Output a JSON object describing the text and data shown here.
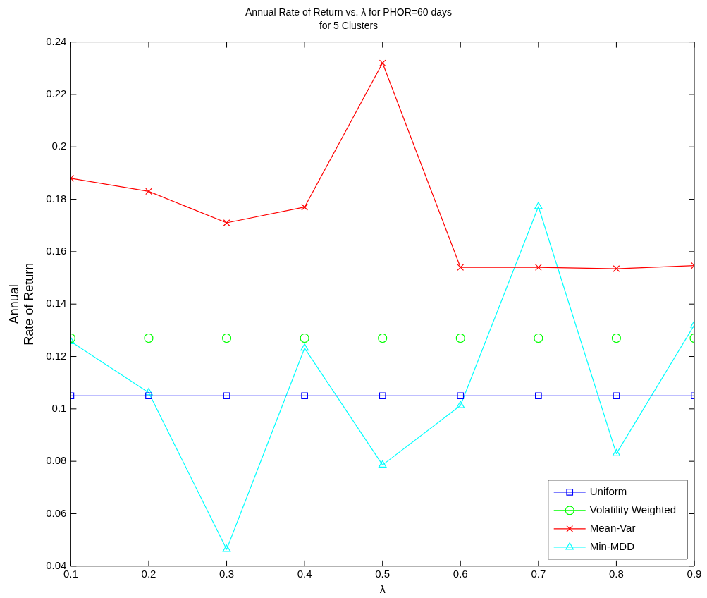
{
  "chart_data": {
    "type": "line",
    "title": "Annual Rate of Return vs. λ for PHOR=60 days",
    "subtitle": "for 5 Clusters",
    "xlabel": "λ",
    "ylabel": "Annual\nRate of Return",
    "x": [
      0.1,
      0.2,
      0.3,
      0.4,
      0.5,
      0.6,
      0.7,
      0.8,
      0.9
    ],
    "xlim": [
      0.1,
      0.9
    ],
    "xticks": [
      0.1,
      0.2,
      0.3,
      0.4,
      0.5,
      0.6,
      0.7,
      0.8,
      0.9
    ],
    "ylim": [
      0.04,
      0.24
    ],
    "yticks": [
      0.04,
      0.06,
      0.08,
      0.1,
      0.12,
      0.14,
      0.16,
      0.18,
      0.2,
      0.22,
      0.24
    ],
    "legend": "bottom right",
    "series": [
      {
        "name": "Uniform",
        "color": "#0000ff",
        "marker": "square",
        "values": [
          0.105,
          0.105,
          0.105,
          0.105,
          0.105,
          0.105,
          0.105,
          0.105,
          0.105
        ]
      },
      {
        "name": "Volatility Weighted",
        "color": "#00ff00",
        "marker": "circle",
        "values": [
          0.127,
          0.127,
          0.127,
          0.127,
          0.127,
          0.127,
          0.127,
          0.127,
          0.127
        ]
      },
      {
        "name": "Mean-Var",
        "color": "#ff0000",
        "marker": "cross",
        "values": [
          0.188,
          0.183,
          0.171,
          0.177,
          0.232,
          0.154,
          0.154,
          0.1535,
          0.1547
        ]
      },
      {
        "name": "Min-MDD",
        "color": "#00ffff",
        "marker": "triangle",
        "values": [
          0.1257,
          0.1062,
          0.0464,
          0.1232,
          0.0786,
          0.1013,
          0.1772,
          0.0829,
          0.132
        ]
      }
    ]
  }
}
